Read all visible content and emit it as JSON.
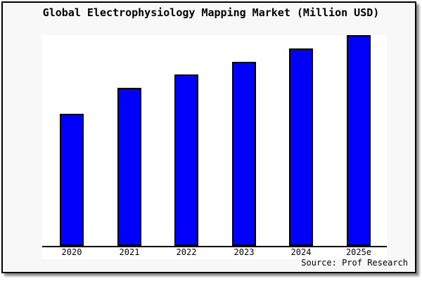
{
  "chart_data": {
    "type": "bar",
    "title": "Global Electrophysiology Mapping Market (Million USD)",
    "categories": [
      "2020",
      "2021",
      "2022",
      "2023",
      "2024",
      "2025e"
    ],
    "values": [
      62.7,
      75.0,
      81.3,
      87.3,
      93.7,
      100.0
    ],
    "value_note": "y-axis is unlabeled with no gridlines; values are relative bar heights as % of the tallest bar (2025e)",
    "xlabel": "",
    "ylabel": "",
    "ylim": [
      0,
      100
    ],
    "grid": false,
    "legend": null,
    "source": "Source: Prof Research",
    "bar_color": "#0000fb",
    "bar_border_color": "#000000"
  },
  "colors": {
    "figure_background": "#f8f8f8",
    "plot_background": "#ffffff",
    "frame_border": "#000000",
    "axis_line": "#000000",
    "text": "#000000"
  }
}
